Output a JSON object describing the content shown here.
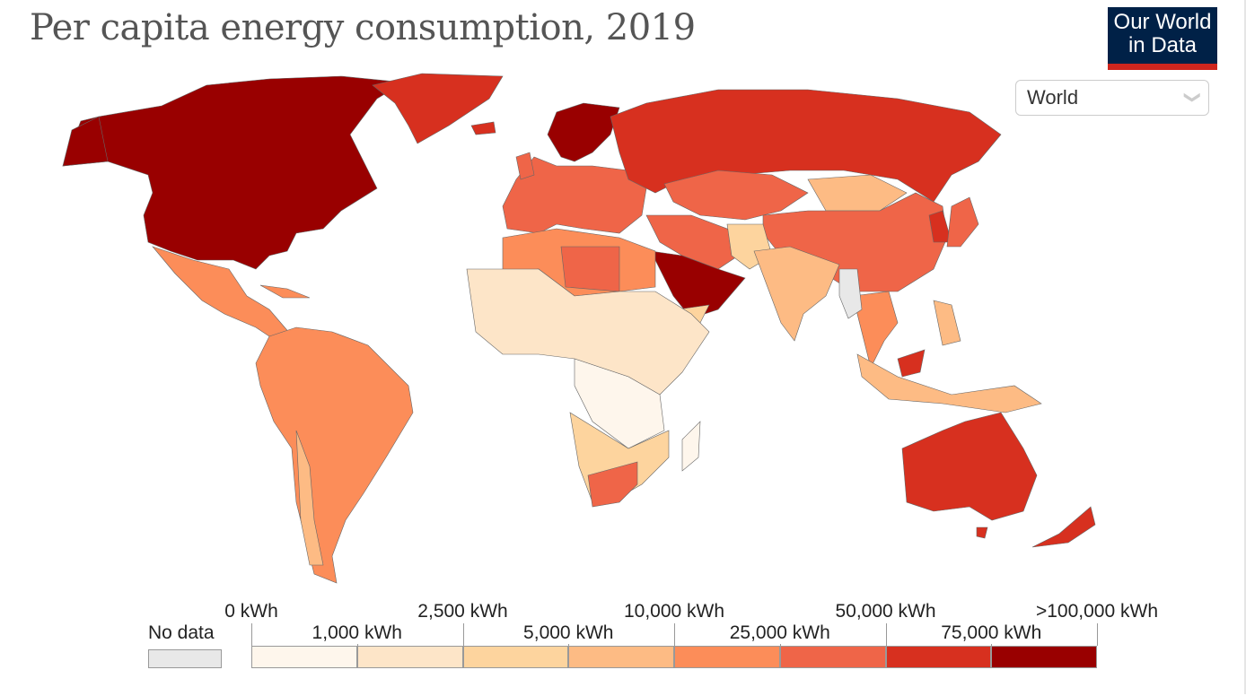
{
  "title": "Per capita energy consumption, 2019",
  "logo": {
    "line1": "Our World",
    "line2": "in Data"
  },
  "region_select": {
    "value": "World",
    "icon": "chevron-down-icon"
  },
  "legend": {
    "no_data_label": "No data",
    "no_data_color": "#e8e8e8",
    "bins": [
      {
        "label_start": "0 kWh",
        "color": "#fef6ec"
      },
      {
        "label_start": "1,000 kWh",
        "color": "#fde5c8"
      },
      {
        "label_start": "2,500 kWh",
        "color": "#fdd49e"
      },
      {
        "label_start": "5,000 kWh",
        "color": "#fdbb84"
      },
      {
        "label_start": "10,000 kWh",
        "color": "#fc8d59"
      },
      {
        "label_start": "25,000 kWh",
        "color": "#ef6548"
      },
      {
        "label_start": "50,000 kWh",
        "color": "#d7301f"
      },
      {
        "label_start": "75,000 kWh",
        "color": "#990000"
      }
    ],
    "last_label": ">100,000 kWh"
  }
}
